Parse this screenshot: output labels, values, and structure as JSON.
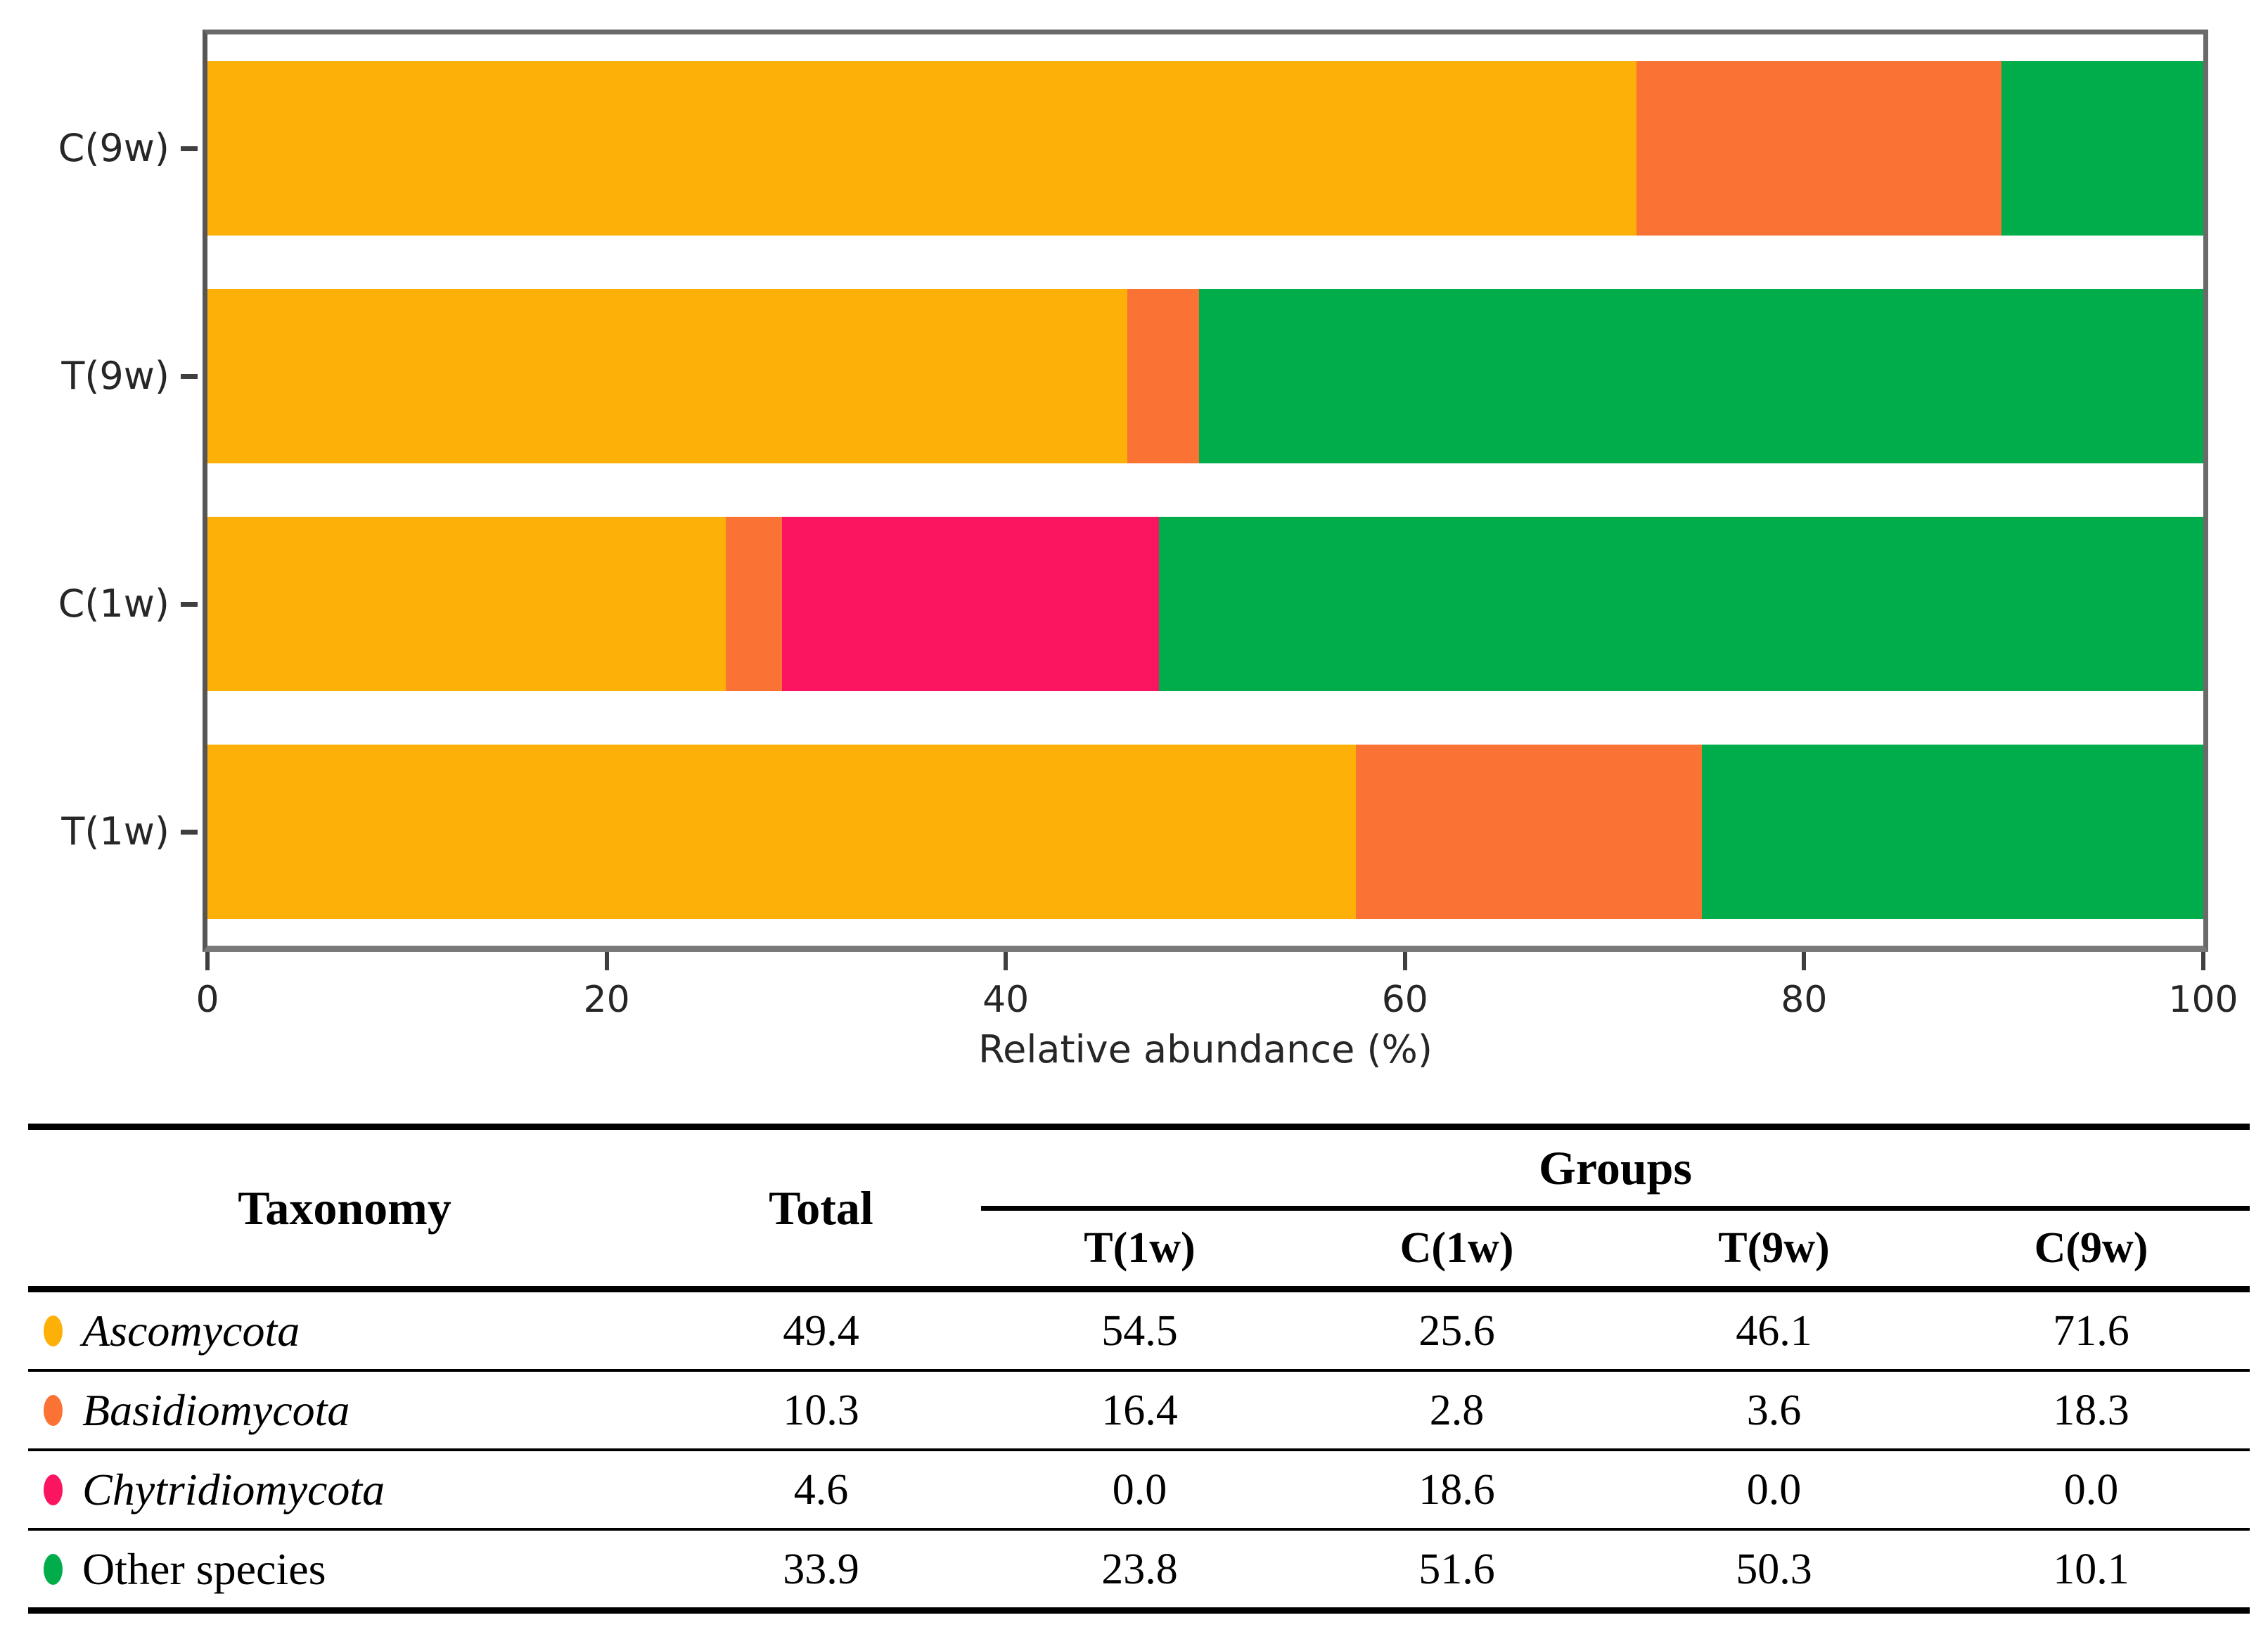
{
  "chart_data": {
    "type": "bar",
    "orientation": "horizontal",
    "stacked": true,
    "title": "",
    "xlabel": "Relative abundance (%)",
    "categories": [
      "C(9w)",
      "T(9w)",
      "C(1w)",
      "T(1w)"
    ],
    "series": [
      {
        "name": "Ascomycota",
        "color": "#FDB108",
        "values": [
          71.6,
          46.1,
          25.6,
          54.5
        ]
      },
      {
        "name": "Basidiomycota",
        "color": "#FA7334",
        "values": [
          18.3,
          3.6,
          2.8,
          16.4
        ]
      },
      {
        "name": "Chytridiomycota",
        "color": "#FB1460",
        "values": [
          0.0,
          0.0,
          18.6,
          0.0
        ]
      },
      {
        "name": "Other species",
        "color": "#01AD4B",
        "values": [
          10.1,
          50.3,
          51.6,
          23.8
        ]
      }
    ],
    "x_ticks": [
      "0",
      "20",
      "40",
      "60",
      "80",
      "100"
    ],
    "xlim": [
      0,
      100
    ],
    "legend_position": "none",
    "grid": false
  },
  "table": {
    "header": {
      "taxonomy": "Taxonomy",
      "total": "Total",
      "groups": "Groups"
    },
    "group_columns": [
      "T(1w)",
      "C(1w)",
      "T(9w)",
      "C(9w)"
    ],
    "rows": [
      {
        "name": "Ascomycota",
        "italic": true,
        "color": "#FDB108",
        "total": "49.4",
        "values": [
          "54.5",
          "25.6",
          "46.1",
          "71.6"
        ]
      },
      {
        "name": "Basidiomycota",
        "italic": true,
        "color": "#FA7334",
        "total": "10.3",
        "values": [
          "16.4",
          "2.8",
          "3.6",
          "18.3"
        ]
      },
      {
        "name": "Chytridiomycota",
        "italic": true,
        "color": "#FB1460",
        "total": "4.6",
        "values": [
          "0.0",
          "18.6",
          "0.0",
          "0.0"
        ]
      },
      {
        "name": "Other species",
        "italic": false,
        "color": "#01AD4B",
        "total": "33.9",
        "values": [
          "23.8",
          "51.6",
          "50.3",
          "10.1"
        ]
      }
    ]
  }
}
